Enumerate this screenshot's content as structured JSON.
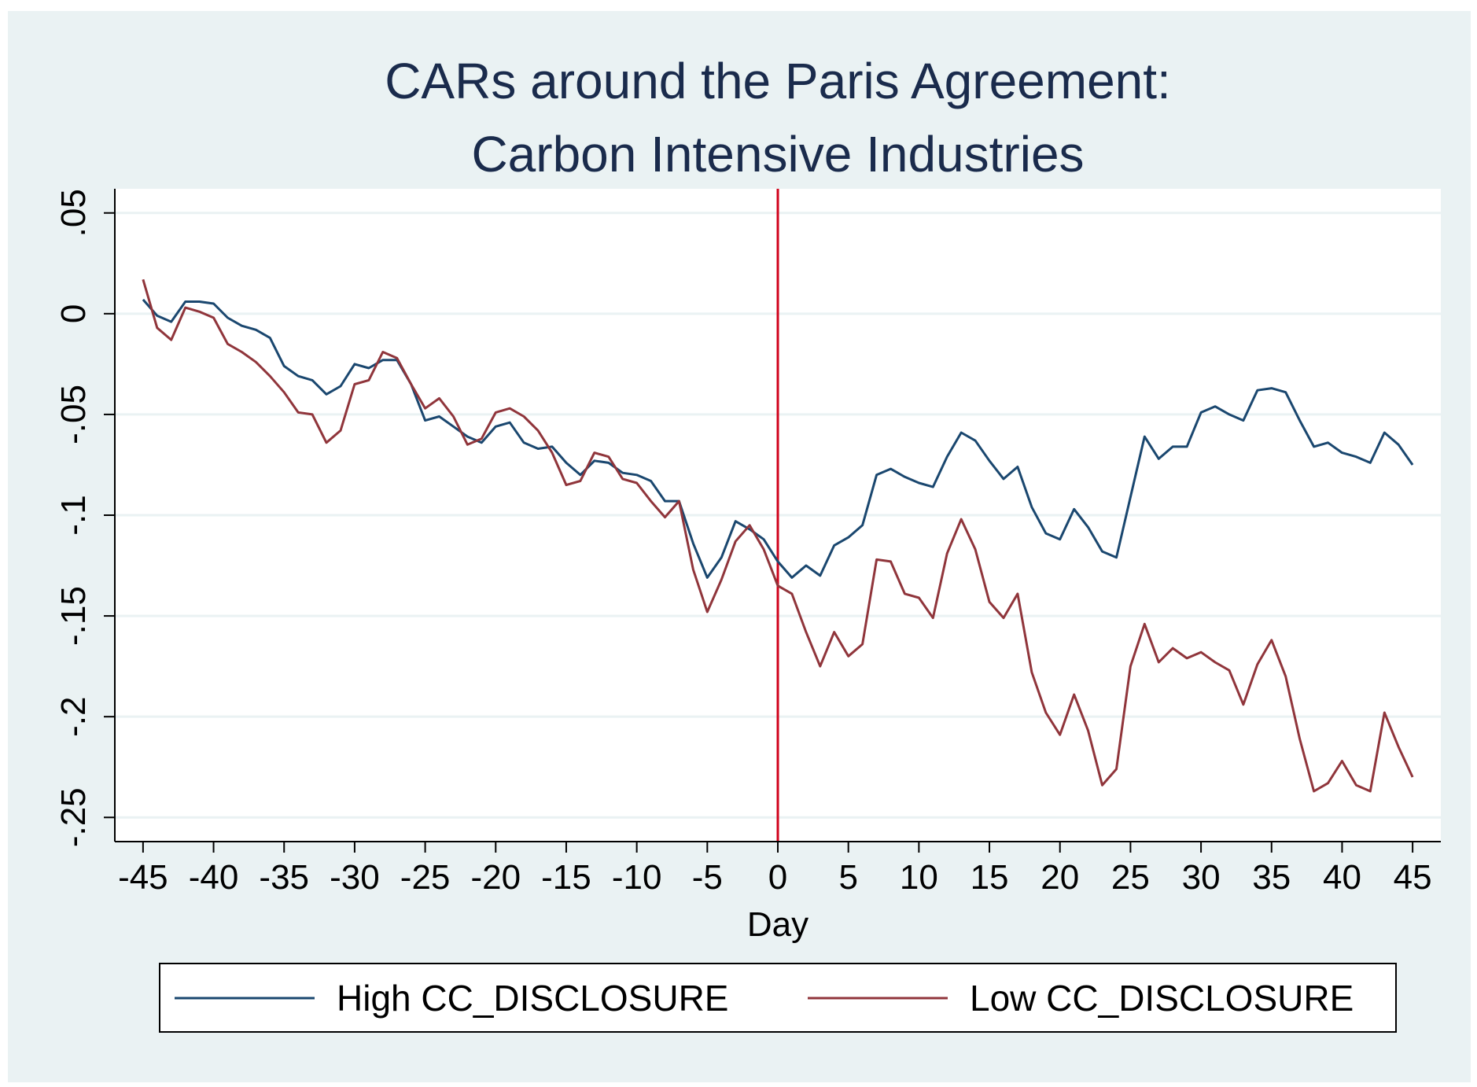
{
  "chart_data": {
    "type": "line",
    "title_lines": [
      "CARs around the Paris Agreement:",
      "Carbon Intensive Industries"
    ],
    "xlabel": "Day",
    "ylabel": "",
    "xlim": [
      -47,
      47
    ],
    "ylim": [
      -0.262,
      0.062
    ],
    "x_ticks": [
      -45,
      -40,
      -35,
      -30,
      -25,
      -20,
      -15,
      -10,
      -5,
      0,
      5,
      10,
      15,
      20,
      25,
      30,
      35,
      40,
      45
    ],
    "x_tick_labels": [
      "-45",
      "-40",
      "-35",
      "-30",
      "-25",
      "-20",
      "-15",
      "-10",
      "-5",
      "0",
      "5",
      "10",
      "15",
      "20",
      "25",
      "30",
      "35",
      "40",
      "45"
    ],
    "y_ticks": [
      0.05,
      0,
      -0.05,
      -0.1,
      -0.15,
      -0.2,
      -0.25
    ],
    "y_tick_labels": [
      ".05",
      "0",
      "-.05",
      "-.1",
      "-.15",
      "-.2",
      "-.25"
    ],
    "grid": "horizontal",
    "legend_position": "bottom",
    "event_line_x": 0,
    "colors": {
      "page_background": "#eaf2f3",
      "plot_background": "#ffffff",
      "grid": "#eaf2f3",
      "event_line": "#d0021b",
      "title": "#1a2b4c"
    },
    "x": [
      -45,
      -44,
      -43,
      -42,
      -41,
      -40,
      -39,
      -38,
      -37,
      -36,
      -35,
      -34,
      -33,
      -32,
      -31,
      -30,
      -29,
      -28,
      -27,
      -26,
      -25,
      -24,
      -23,
      -22,
      -21,
      -20,
      -19,
      -18,
      -17,
      -16,
      -15,
      -14,
      -13,
      -12,
      -11,
      -10,
      -9,
      -8,
      -7,
      -6,
      -5,
      -4,
      -3,
      -2,
      -1,
      0,
      1,
      2,
      3,
      4,
      5,
      6,
      7,
      8,
      9,
      10,
      11,
      12,
      13,
      14,
      15,
      16,
      17,
      18,
      19,
      20,
      21,
      22,
      23,
      24,
      25,
      26,
      27,
      28,
      29,
      30,
      31,
      32,
      33,
      34,
      35,
      36,
      37,
      38,
      39,
      40,
      41,
      42,
      43,
      44,
      45
    ],
    "series": [
      {
        "name": "High CC_DISCLOSURE",
        "color": "#1a476f",
        "values": [
          0.007,
          -0.001,
          -0.004,
          0.006,
          0.006,
          0.005,
          -0.002,
          -0.006,
          -0.008,
          -0.012,
          -0.026,
          -0.031,
          -0.033,
          -0.04,
          -0.036,
          -0.025,
          -0.027,
          -0.023,
          -0.023,
          -0.035,
          -0.053,
          -0.051,
          -0.056,
          -0.061,
          -0.064,
          -0.056,
          -0.054,
          -0.064,
          -0.067,
          -0.066,
          -0.074,
          -0.08,
          -0.073,
          -0.074,
          -0.079,
          -0.08,
          -0.083,
          -0.093,
          -0.093,
          -0.114,
          -0.131,
          -0.121,
          -0.103,
          -0.107,
          -0.112,
          -0.123,
          -0.131,
          -0.125,
          -0.13,
          -0.115,
          -0.111,
          -0.105,
          -0.08,
          -0.077,
          -0.081,
          -0.084,
          -0.086,
          -0.071,
          -0.059,
          -0.063,
          -0.073,
          -0.082,
          -0.076,
          -0.096,
          -0.109,
          -0.112,
          -0.097,
          -0.106,
          -0.118,
          -0.121,
          -0.091,
          -0.061,
          -0.072,
          -0.066,
          -0.066,
          -0.049,
          -0.046,
          -0.05,
          -0.053,
          -0.038,
          -0.037,
          -0.039,
          -0.053,
          -0.066,
          -0.064,
          -0.069,
          -0.071,
          -0.074,
          -0.059,
          -0.065,
          -0.075
        ]
      },
      {
        "name": "Low CC_DISCLOSURE",
        "color": "#90353b",
        "values": [
          0.017,
          -0.007,
          -0.013,
          0.003,
          0.001,
          -0.002,
          -0.015,
          -0.019,
          -0.024,
          -0.031,
          -0.039,
          -0.049,
          -0.05,
          -0.064,
          -0.058,
          -0.035,
          -0.033,
          -0.019,
          -0.022,
          -0.035,
          -0.047,
          -0.042,
          -0.051,
          -0.065,
          -0.062,
          -0.049,
          -0.047,
          -0.051,
          -0.058,
          -0.069,
          -0.085,
          -0.083,
          -0.069,
          -0.071,
          -0.082,
          -0.084,
          -0.093,
          -0.101,
          -0.093,
          -0.127,
          -0.148,
          -0.132,
          -0.113,
          -0.105,
          -0.117,
          -0.135,
          -0.139,
          -0.158,
          -0.175,
          -0.158,
          -0.17,
          -0.164,
          -0.122,
          -0.123,
          -0.139,
          -0.141,
          -0.151,
          -0.119,
          -0.102,
          -0.117,
          -0.143,
          -0.151,
          -0.139,
          -0.178,
          -0.198,
          -0.209,
          -0.189,
          -0.207,
          -0.234,
          -0.226,
          -0.175,
          -0.154,
          -0.173,
          -0.166,
          -0.171,
          -0.168,
          -0.173,
          -0.177,
          -0.194,
          -0.174,
          -0.162,
          -0.18,
          -0.211,
          -0.237,
          -0.233,
          -0.222,
          -0.234,
          -0.237,
          -0.198,
          -0.215,
          -0.23
        ]
      }
    ]
  }
}
